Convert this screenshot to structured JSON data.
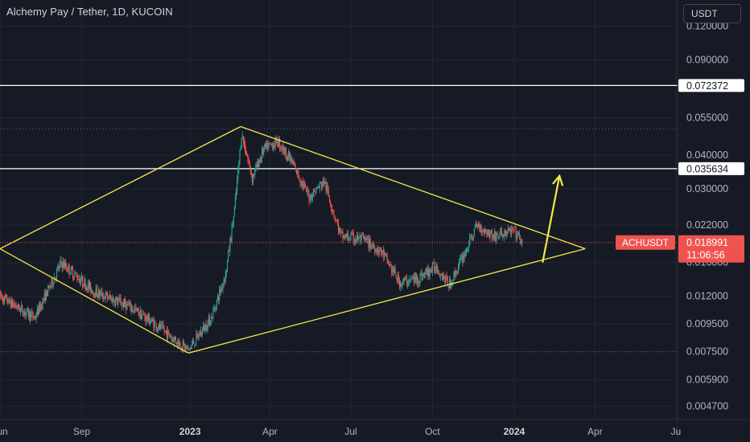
{
  "header": {
    "title": "Alchemy Pay / Tether, 1D, KUCOIN",
    "currency_label": "USDT"
  },
  "colors": {
    "background": "#161a25",
    "grid": "#232733",
    "text": "#b2b5be",
    "up_candle": "#26a69a",
    "down_candle": "#ef5350",
    "trendline": "#f5e94a",
    "level_line": "#ffffff",
    "current_price": "#ef5350"
  },
  "chart_data": {
    "type": "candlestick",
    "symbol": "ACHUSDT",
    "scale": "log",
    "ylim": [
      0.0042,
      0.15
    ],
    "y_ticks": [
      "0.120000",
      "0.090000",
      "0.055000",
      "0.040000",
      "0.030000",
      "0.022000",
      "0.016000",
      "0.012000",
      "0.009500",
      "0.007500",
      "0.005900",
      "0.004700"
    ],
    "x_ticks": [
      "Jun",
      "Sep",
      "2023",
      "Apr",
      "Jul",
      "Oct",
      "2024",
      "Apr",
      "Ju"
    ],
    "x_tick_dates": [
      "2022-06-01",
      "2022-09-01",
      "2023-01-01",
      "2023-04-01",
      "2023-07-01",
      "2023-10-01",
      "2024-01-01",
      "2024-04-01",
      "2024-07-01"
    ],
    "x_range": [
      "2022-06-01",
      "2024-07-03"
    ],
    "grid": true,
    "levels": [
      {
        "value": 0.072372,
        "label": "0.072372"
      },
      {
        "value": 0.035634,
        "label": "0.035634"
      }
    ],
    "dotted_levels": [
      0.05,
      0.00748
    ],
    "current_price": {
      "value": 0.018991,
      "label": "0.018991",
      "symbol_label": "ACHUSDT",
      "countdown": "11:06:56"
    },
    "anchors": [
      {
        "date": "2022-06-01",
        "price": 0.012
      },
      {
        "date": "2022-07-10",
        "price": 0.01
      },
      {
        "date": "2022-08-09",
        "price": 0.016
      },
      {
        "date": "2022-09-15",
        "price": 0.0125
      },
      {
        "date": "2022-10-25",
        "price": 0.011
      },
      {
        "date": "2022-11-22",
        "price": 0.0095
      },
      {
        "date": "2022-12-30",
        "price": 0.0076
      },
      {
        "date": "2023-01-25",
        "price": 0.01
      },
      {
        "date": "2023-02-10",
        "price": 0.0145
      },
      {
        "date": "2023-02-20",
        "price": 0.025
      },
      {
        "date": "2023-02-28",
        "price": 0.048
      },
      {
        "date": "2023-03-12",
        "price": 0.033
      },
      {
        "date": "2023-03-25",
        "price": 0.042
      },
      {
        "date": "2023-04-10",
        "price": 0.045
      },
      {
        "date": "2023-04-25",
        "price": 0.038
      },
      {
        "date": "2023-05-15",
        "price": 0.028
      },
      {
        "date": "2023-06-01",
        "price": 0.032
      },
      {
        "date": "2023-06-20",
        "price": 0.02
      },
      {
        "date": "2023-07-15",
        "price": 0.0195
      },
      {
        "date": "2023-08-05",
        "price": 0.0175
      },
      {
        "date": "2023-08-25",
        "price": 0.0135
      },
      {
        "date": "2023-09-15",
        "price": 0.014
      },
      {
        "date": "2023-10-05",
        "price": 0.0155
      },
      {
        "date": "2023-10-20",
        "price": 0.0132
      },
      {
        "date": "2023-11-05",
        "price": 0.017
      },
      {
        "date": "2023-11-20",
        "price": 0.022
      },
      {
        "date": "2023-12-10",
        "price": 0.02
      },
      {
        "date": "2024-01-01",
        "price": 0.021
      },
      {
        "date": "2024-01-10",
        "price": 0.019
      }
    ],
    "trendlines": [
      {
        "from": {
          "date": "2022-06-01",
          "price": 0.018
        },
        "to": {
          "date": "2023-02-27",
          "price": 0.051
        }
      },
      {
        "from": {
          "date": "2022-06-01",
          "price": 0.018
        },
        "to": {
          "date": "2022-12-30",
          "price": 0.0074
        }
      },
      {
        "from": {
          "date": "2022-12-30",
          "price": 0.0074
        },
        "to": {
          "date": "2024-03-21",
          "price": 0.018
        }
      },
      {
        "from": {
          "date": "2023-02-27",
          "price": 0.051
        },
        "to": {
          "date": "2024-03-21",
          "price": 0.018
        }
      }
    ],
    "arrow": {
      "from": {
        "date": "2024-02-02",
        "price": 0.016
      },
      "to": {
        "date": "2024-02-21",
        "price": 0.0335
      }
    }
  }
}
